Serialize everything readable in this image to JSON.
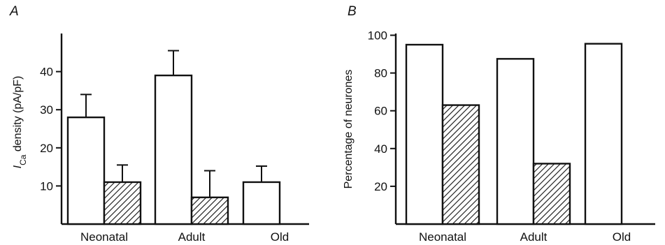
{
  "chart_data": [
    {
      "type": "bar",
      "panel": "A",
      "categories": [
        "Neonatal",
        "Adult",
        "Old"
      ],
      "ylabel_italic": "I",
      "ylabel_sub": "Ca",
      "ylabel_rest": " density (pA/pF)",
      "ylim": [
        0,
        50
      ],
      "yticks": [
        10,
        20,
        30,
        40
      ],
      "series": [
        {
          "fill": "open",
          "values": [
            28,
            39,
            11
          ],
          "errors": [
            6,
            6.5,
            4.2
          ]
        },
        {
          "fill": "hatched",
          "values": [
            11,
            7,
            null
          ],
          "errors": [
            4.5,
            7,
            null
          ]
        }
      ]
    },
    {
      "type": "bar",
      "panel": "B",
      "categories": [
        "Neonatal",
        "Adult",
        "Old"
      ],
      "ylabel": "Percentage of neurones",
      "ylim": [
        0,
        100
      ],
      "yticks": [
        20,
        40,
        60,
        80,
        100
      ],
      "series": [
        {
          "fill": "open",
          "values": [
            95,
            87.5,
            95.5
          ]
        },
        {
          "fill": "hatched",
          "values": [
            63,
            32,
            null
          ]
        }
      ]
    }
  ]
}
